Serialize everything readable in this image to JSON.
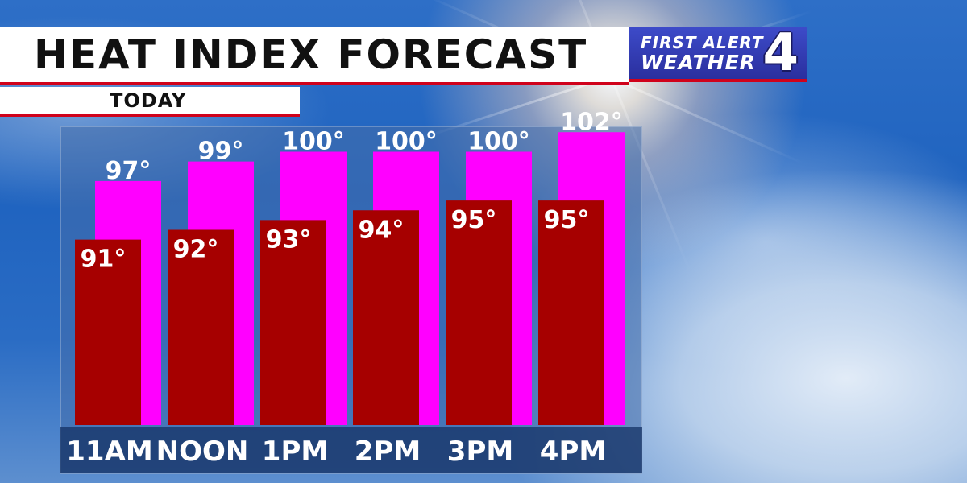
{
  "header": {
    "title": "HEAT INDEX FORECAST",
    "subtitle": "TODAY"
  },
  "logo": {
    "line1": "FIRST ALERT",
    "line2": "WEATHER",
    "number": "4"
  },
  "colors": {
    "temperature": "#a60000",
    "heat_index": "#ff00ff",
    "accent": "#d0021b"
  },
  "chart_data": {
    "type": "bar",
    "categories": [
      "11AM",
      "NOON",
      "1PM",
      "2PM",
      "3PM",
      "4PM"
    ],
    "series": [
      {
        "values": [
          91,
          92,
          93,
          94,
          95,
          95
        ],
        "labels": [
          "91°",
          "92°",
          "93°",
          "94°",
          "95°",
          "95°"
        ]
      },
      {
        "values": [
          97,
          99,
          100,
          100,
          100,
          102
        ],
        "labels": [
          "97°",
          "99°",
          "100°",
          "100°",
          "100°",
          "102°"
        ]
      }
    ],
    "title": "HEAT INDEX FORECAST",
    "subtitle": "TODAY",
    "unit": "°",
    "xlabel": "",
    "ylabel": "",
    "ylim": [
      72,
      104
    ],
    "grid": false
  }
}
